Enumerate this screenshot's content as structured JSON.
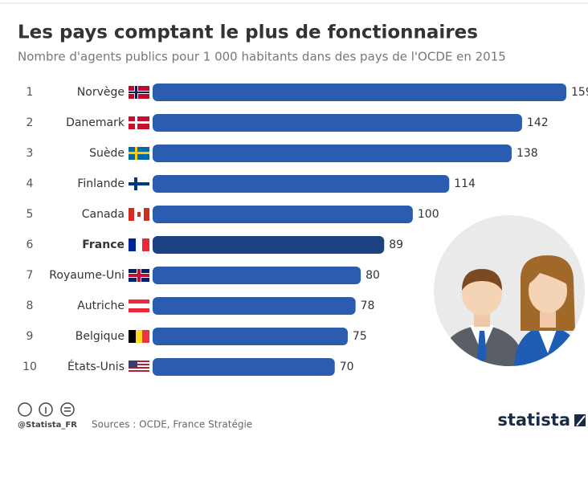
{
  "chart_data": {
    "type": "bar",
    "title": "Les pays comptant le plus de fonctionnaires",
    "subtitle": "Nombre d'agents publics pour 1 000 habitants dans des pays de l'OCDE en 2015",
    "ranks": [
      1,
      2,
      3,
      4,
      5,
      6,
      7,
      8,
      9,
      10
    ],
    "categories": [
      "Norvège",
      "Danemark",
      "Suède",
      "Finlande",
      "Canada",
      "France",
      "Royaume-Uni",
      "Autriche",
      "Belgique",
      "États-Unis"
    ],
    "values": [
      159,
      142,
      138,
      114,
      100,
      89,
      80,
      78,
      75,
      70
    ],
    "colors": [
      "#2a5db0",
      "#2a5db0",
      "#2a5db0",
      "#2a5db0",
      "#2a5db0",
      "#1b4384",
      "#2a5db0",
      "#2a5db0",
      "#2a5db0",
      "#2a5db0"
    ],
    "bold_categories": [
      false,
      false,
      false,
      false,
      false,
      true,
      false,
      false,
      false,
      false
    ],
    "credit": "@Statista_FR",
    "source": "Sources : OCDE, France Stratégie",
    "brand": "statista"
  }
}
